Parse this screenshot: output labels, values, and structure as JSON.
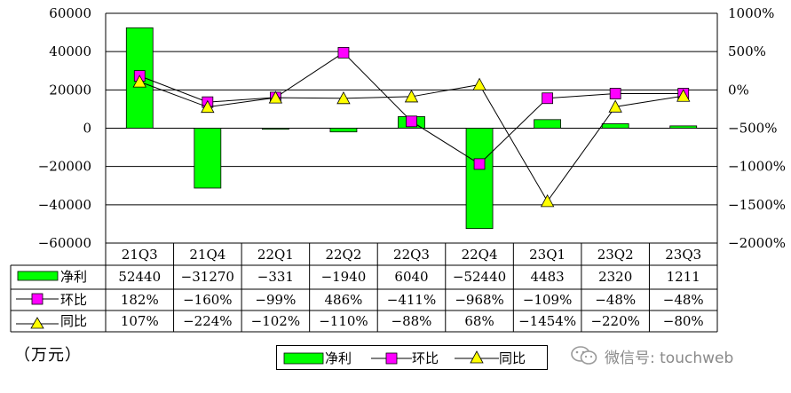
{
  "unit_label": "（万元）",
  "watermark": {
    "text": "微信号: touchweb",
    "icon": "wechat-icon"
  },
  "colors": {
    "bar": "#00ff00",
    "qoq": "#ff00ff",
    "yoy": "#ffff00",
    "line": "#000000",
    "grid": "#000000"
  },
  "chart_data": {
    "type": "bar+line",
    "categories": [
      "21Q3",
      "21Q4",
      "22Q1",
      "22Q2",
      "22Q3",
      "22Q4",
      "23Q1",
      "23Q2",
      "23Q3"
    ],
    "left_axis": {
      "ylim": [
        -60000,
        60000
      ],
      "ticks": [
        60000,
        40000,
        20000,
        0,
        -20000,
        -40000,
        -60000
      ],
      "tick_labels": [
        "60000",
        "40000",
        "20000",
        "0",
        "−20000",
        "−40000",
        "−60000"
      ]
    },
    "right_axis": {
      "ylim": [
        -2000,
        1000
      ],
      "ticks": [
        1000,
        500,
        0,
        -500,
        -1000,
        -1500,
        -2000
      ],
      "tick_labels": [
        "1000%",
        "500%",
        "0%",
        "−500%",
        "−1000%",
        "−1500%",
        "−2000%"
      ]
    },
    "grid": true,
    "series": [
      {
        "name": "净利",
        "kind": "bar",
        "axis": "left",
        "values": [
          52440,
          -31270,
          -331,
          -1940,
          6040,
          -52440,
          4483,
          2320,
          1211
        ],
        "labels": [
          "52440",
          "−31270",
          "−331",
          "−1940",
          "6040",
          "−52440",
          "4483",
          "2320",
          "1211"
        ]
      },
      {
        "name": "环比",
        "kind": "line",
        "marker": "square",
        "axis": "right",
        "values": [
          182,
          -160,
          -99,
          486,
          -411,
          -968,
          -109,
          -48,
          -48
        ],
        "labels": [
          "182%",
          "−160%",
          "−99%",
          "486%",
          "−411%",
          "−968%",
          "−109%",
          "−48%",
          "−48%"
        ]
      },
      {
        "name": "同比",
        "kind": "line",
        "marker": "triangle",
        "axis": "right",
        "values": [
          107,
          -224,
          -102,
          -110,
          -88,
          68,
          -1454,
          -220,
          -80
        ],
        "labels": [
          "107%",
          "−224%",
          "−102%",
          "−110%",
          "−88%",
          "68%",
          "−1454%",
          "−220%",
          "−80%"
        ]
      }
    ],
    "legend": {
      "position": "bottom",
      "items": [
        "净利",
        "环比",
        "同比"
      ]
    },
    "table": true
  }
}
